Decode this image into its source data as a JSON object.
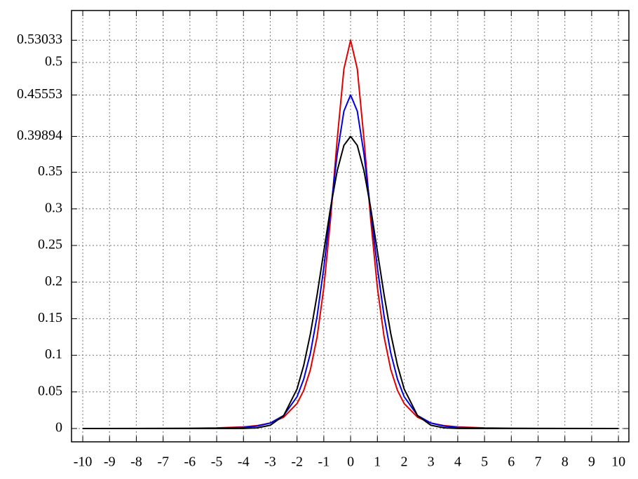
{
  "chart_data": {
    "type": "line",
    "x": [
      -10,
      -8,
      -6,
      -5,
      -4,
      -3.5,
      -3,
      -2.5,
      -2,
      -1.75,
      -1.5,
      -1.25,
      -1,
      -0.75,
      -0.5,
      -0.25,
      0,
      0.25,
      0.5,
      0.75,
      1,
      1.25,
      1.5,
      1.75,
      2,
      2.5,
      3,
      3.5,
      4,
      5,
      6,
      8,
      10
    ],
    "series": [
      {
        "color": "#e00000",
        "values": [
          3e-05,
          8e-05,
          0.00034,
          0.00079,
          0.00218,
          0.00391,
          0.00748,
          0.01535,
          0.03402,
          0.05203,
          0.08057,
          0.12523,
          0.19245,
          0.28541,
          0.39506,
          0.49106,
          0.53033,
          0.49106,
          0.39506,
          0.28541,
          0.19245,
          0.12523,
          0.08057,
          0.05203,
          0.03402,
          0.01535,
          0.00748,
          0.00391,
          0.00218,
          0.00079,
          0.00034,
          8e-05,
          3e-05
        ]
      },
      {
        "color": "#0000e0",
        "values": [
          0,
          1e-05,
          0.0001,
          0.00035,
          0.00146,
          0.00322,
          0.00741,
          0.01778,
          0.04339,
          0.06738,
          0.10305,
          0.15351,
          0.21968,
          0.2974,
          0.37476,
          0.43345,
          0.45553,
          0.43345,
          0.37476,
          0.2974,
          0.21968,
          0.15351,
          0.10305,
          0.06738,
          0.04339,
          0.01778,
          0.00741,
          0.00322,
          0.00146,
          0.00035,
          0.0001,
          1e-05,
          0
        ]
      },
      {
        "color": "#000000",
        "values": [
          0,
          0,
          0,
          0,
          0.00013,
          0.00087,
          0.00443,
          0.01753,
          0.05399,
          0.08628,
          0.12952,
          0.18265,
          0.24197,
          0.30114,
          0.35207,
          0.38667,
          0.39894,
          0.38667,
          0.35207,
          0.30114,
          0.24197,
          0.18265,
          0.12952,
          0.08628,
          0.05399,
          0.01753,
          0.00443,
          0.00087,
          0.00013,
          0,
          0,
          0,
          0
        ]
      }
    ],
    "xlim": [
      -10.42,
      10.39
    ],
    "ylim": [
      -0.0182,
      0.5709
    ],
    "xticks": [
      -10,
      -9,
      -8,
      -7,
      -6,
      -5,
      -4,
      -3,
      -2,
      -1,
      0,
      1,
      2,
      3,
      4,
      5,
      6,
      7,
      8,
      9,
      10
    ],
    "yticks": [
      0,
      0.05,
      0.1,
      0.15,
      0.2,
      0.25,
      0.3,
      0.35,
      0.39894,
      0.45553,
      0.5,
      0.53033
    ],
    "grid": true
  }
}
